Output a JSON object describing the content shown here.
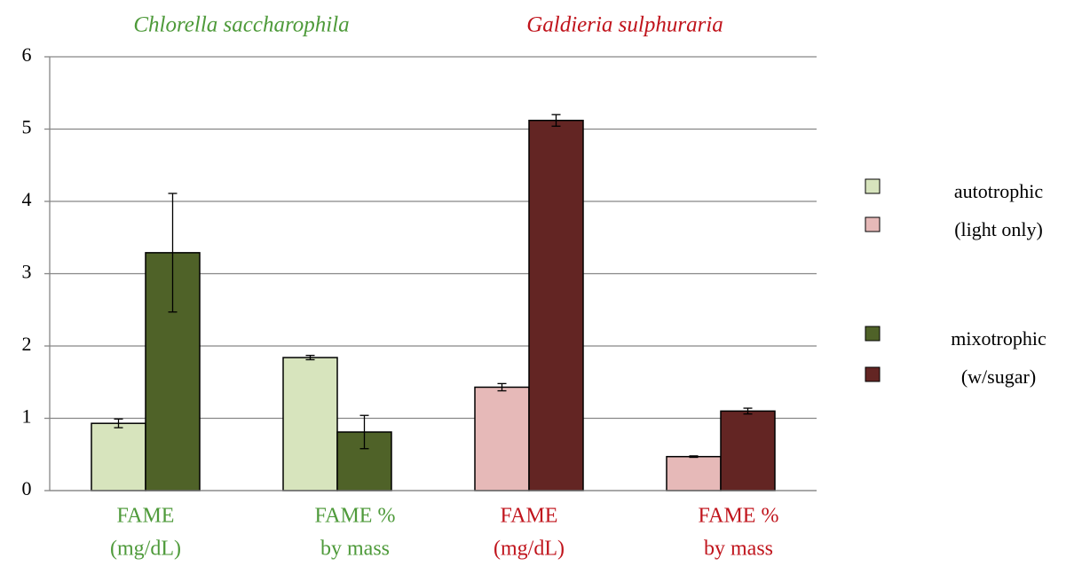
{
  "chart_data": {
    "type": "bar",
    "group_titles": [
      {
        "text": "Chlorella saccharophila",
        "color": "#4e9a3a"
      },
      {
        "text": "Galdieria sulphuraria",
        "color": "#c0141c"
      }
    ],
    "categories": [
      [
        "FAME",
        "(mg/dL)"
      ],
      [
        "FAME %",
        "by mass"
      ],
      [
        "FAME",
        "(mg/dL)"
      ],
      [
        "FAME %",
        "by mass"
      ]
    ],
    "category_colors": [
      "#4e9a3a",
      "#4e9a3a",
      "#c0141c",
      "#c0141c"
    ],
    "series": [
      {
        "name": [
          "autotrophic",
          "(light only)"
        ],
        "colors": [
          "#d7e4bd",
          "#d7e4bd",
          "#e6b9b8",
          "#e6b9b8"
        ],
        "values": [
          0.93,
          1.84,
          1.43,
          0.47
        ],
        "errors": [
          0.06,
          0.03,
          0.05,
          0.01
        ]
      },
      {
        "name": [
          "mixotrophic",
          "(w/sugar)"
        ],
        "colors": [
          "#4f6228",
          "#4f6228",
          "#632523",
          "#632523"
        ],
        "values": [
          3.29,
          0.81,
          5.12,
          1.1
        ],
        "errors": [
          0.82,
          0.23,
          0.08,
          0.04
        ]
      }
    ],
    "ylim": [
      0,
      6
    ],
    "yticks": [
      0,
      1,
      2,
      3,
      4,
      5,
      6
    ],
    "grid": true
  }
}
